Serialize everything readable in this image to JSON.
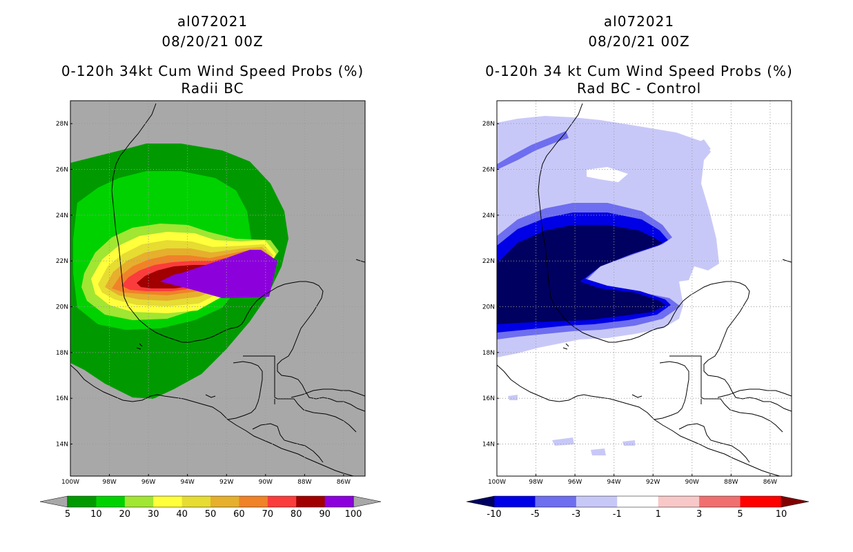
{
  "left_panel": {
    "storm_id": "al072021",
    "datetime": "08/20/21 00Z",
    "product": "0-120h 34kt Cum Wind Speed Probs (%)",
    "subtitle": "Radii BC"
  },
  "right_panel": {
    "storm_id": "al072021",
    "datetime": "08/20/21 00Z",
    "product": "0-120h 34 kt Cum Wind Speed Probs (%)",
    "subtitle": "Rad BC - Control"
  },
  "map": {
    "lon_range": [
      -100,
      -84.9
    ],
    "lat_range": [
      12.6,
      29
    ],
    "lat_ticks": [
      "14N",
      "16N",
      "18N",
      "20N",
      "22N",
      "24N",
      "26N",
      "28N"
    ],
    "lon_ticks": [
      "100W",
      "98W",
      "96W",
      "94W",
      "92W",
      "90W",
      "88W",
      "86W"
    ]
  },
  "left_colorbar": {
    "labels": [
      "5",
      "10",
      "20",
      "30",
      "40",
      "50",
      "60",
      "70",
      "80",
      "90",
      "100"
    ],
    "colors": [
      "#009a00",
      "#00d200",
      "#a0e632",
      "#ffff3c",
      "#e6dc32",
      "#e6af2d",
      "#f08228",
      "#fa3c3c",
      "#a00000",
      "#8c00dc"
    ],
    "low_color": "#a8a8a8",
    "high_color": "#a8a8a8"
  },
  "right_colorbar": {
    "labels": [
      "-10",
      "-5",
      "-3",
      "-1",
      "1",
      "3",
      "5",
      "10"
    ],
    "colors": [
      "#0000e6",
      "#6e6ef0",
      "#c8c8f8",
      "#ffffff",
      "#f8c8c8",
      "#f07070",
      "#ff0000"
    ],
    "low_color": "#000060",
    "high_color": "#800000"
  },
  "colors": {
    "background_gray": "#a8a8a8",
    "grid": "#999999"
  }
}
